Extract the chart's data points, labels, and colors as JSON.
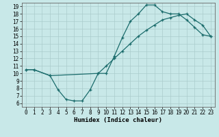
{
  "xlabel": "Humidex (Indice chaleur)",
  "bg_color": "#c8e8e8",
  "grid_color": "#aacccc",
  "line_color": "#1a6b6b",
  "xlim": [
    -0.5,
    23.5
  ],
  "ylim": [
    5.5,
    19.5
  ],
  "xticks": [
    0,
    1,
    2,
    3,
    4,
    5,
    6,
    7,
    8,
    9,
    10,
    11,
    12,
    13,
    14,
    15,
    16,
    17,
    18,
    19,
    20,
    21,
    22,
    23
  ],
  "yticks": [
    6,
    7,
    8,
    9,
    10,
    11,
    12,
    13,
    14,
    15,
    16,
    17,
    18,
    19
  ],
  "curve1_x": [
    0,
    1,
    3,
    4,
    5,
    6,
    7,
    8,
    9,
    10,
    11,
    12,
    13,
    14,
    15,
    16,
    17,
    18,
    19,
    20,
    21,
    22,
    23
  ],
  "curve1_y": [
    10.5,
    10.5,
    9.7,
    7.8,
    6.5,
    6.3,
    6.3,
    7.8,
    10.0,
    10.0,
    12.3,
    14.8,
    17.0,
    18.0,
    19.2,
    19.2,
    18.3,
    18.0,
    18.0,
    17.2,
    16.2,
    15.2,
    15.0
  ],
  "curve2_x": [
    0,
    1,
    3,
    9,
    10,
    11,
    12,
    13,
    14,
    15,
    16,
    17,
    18,
    19,
    20,
    21,
    22,
    23
  ],
  "curve2_y": [
    10.5,
    10.5,
    9.7,
    10.0,
    11.0,
    12.0,
    13.0,
    14.0,
    15.0,
    15.8,
    16.5,
    17.2,
    17.5,
    17.8,
    18.0,
    17.2,
    16.5,
    15.0
  ],
  "xlabel_fontsize": 6.5,
  "tick_fontsize": 5.5
}
